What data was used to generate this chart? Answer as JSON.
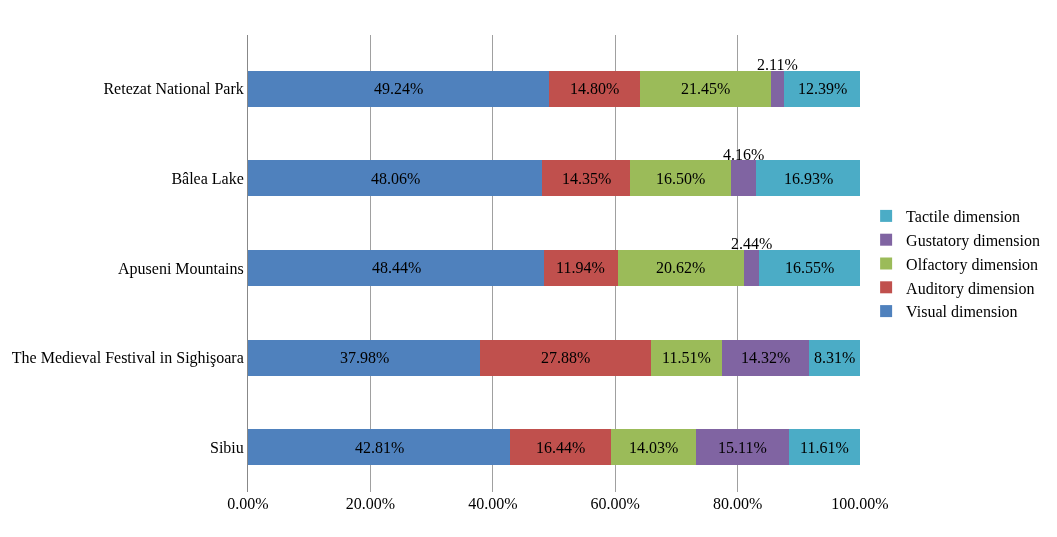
{
  "chart_data": {
    "type": "bar",
    "orientation": "horizontal",
    "stacked": true,
    "categories": [
      "Retezat National Park",
      "Bâlea Lake",
      "Apuseni Mountains",
      "The Medieval Festival in Sighişoara",
      "Sibiu"
    ],
    "series": [
      {
        "name": "Visual dimension",
        "color": "#4f81bd",
        "values": [
          49.24,
          48.06,
          48.44,
          37.98,
          42.81
        ],
        "value_labels": [
          "49.24%",
          "48.06%",
          "48.44%",
          "37.98%",
          "42.81%"
        ]
      },
      {
        "name": "Auditory dimension",
        "color": "#c0504d",
        "values": [
          14.8,
          14.35,
          11.94,
          27.88,
          16.44
        ],
        "value_labels": [
          "14.80%",
          "14.35%",
          "11.94%",
          "27.88%",
          "16.44%"
        ]
      },
      {
        "name": "Olfactory dimension",
        "color": "#9bbb59",
        "values": [
          21.45,
          16.5,
          20.62,
          11.51,
          14.03
        ],
        "value_labels": [
          "21.45%",
          "16.50%",
          "20.62%",
          "11.51%",
          "14.03%"
        ]
      },
      {
        "name": "Gustatory dimension",
        "color": "#8064a2",
        "values": [
          2.11,
          4.16,
          2.44,
          14.32,
          15.11
        ],
        "value_labels": [
          "2.11%",
          "4.16%",
          "2.44%",
          "14.32%",
          "15.11%"
        ]
      },
      {
        "name": "Tactile dimension",
        "color": "#4bacc6",
        "values": [
          12.39,
          16.93,
          16.55,
          8.31,
          11.61
        ],
        "value_labels": [
          "12.39%",
          "16.93%",
          "16.55%",
          "8.31%",
          "11.61%"
        ]
      }
    ],
    "xlim": [
      0,
      100
    ],
    "xticks": [
      {
        "value": 0,
        "label": "0.00%"
      },
      {
        "value": 20,
        "label": "20.00%"
      },
      {
        "value": 40,
        "label": "40.00%"
      },
      {
        "value": 60,
        "label": "60.00%"
      },
      {
        "value": 80,
        "label": "80.00%"
      },
      {
        "value": 100,
        "label": "100.00%"
      }
    ],
    "grid": "x",
    "legend": "right"
  }
}
